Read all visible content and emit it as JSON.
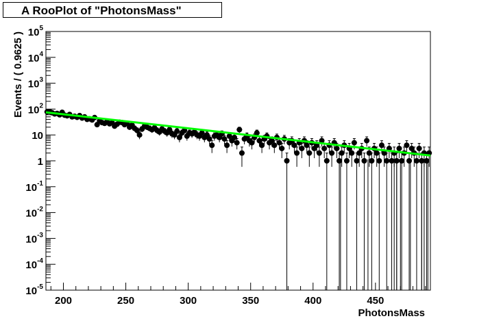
{
  "chart_data": {
    "type": "scatter",
    "title": "A RooPlot of \"PhotonsMass\"",
    "xlabel": "PhotonsMass",
    "ylabel": "Events / ( 0.9625 )",
    "xlim": [
      186,
      494
    ],
    "ylim": [
      1e-05,
      100000
    ],
    "yscale": "log",
    "x_ticks": [
      200,
      250,
      300,
      350,
      400,
      450
    ],
    "x_tick_labels": [
      "200",
      "250",
      "300",
      "350",
      "400",
      "450"
    ],
    "y_ticks": [
      {
        "value": 1e-05,
        "base": "10",
        "exp": "-5"
      },
      {
        "value": 0.0001,
        "base": "10",
        "exp": "-4"
      },
      {
        "value": 0.001,
        "base": "10",
        "exp": "-3"
      },
      {
        "value": 0.01,
        "base": "10",
        "exp": "-2"
      },
      {
        "value": 0.1,
        "base": "10",
        "exp": "-1"
      },
      {
        "value": 1,
        "base": "1",
        "exp": ""
      },
      {
        "value": 10,
        "base": "10",
        "exp": ""
      },
      {
        "value": 100,
        "base": "10",
        "exp": "2"
      },
      {
        "value": 1000,
        "base": "10",
        "exp": "3"
      },
      {
        "value": 10000,
        "base": "10",
        "exp": "4"
      },
      {
        "value": 100000,
        "base": "10",
        "exp": "5"
      }
    ],
    "grid": false,
    "series": [
      {
        "kind": "points",
        "color": "#000000",
        "points": [
          [
            187,
            78
          ],
          [
            189,
            80
          ],
          [
            191,
            72
          ],
          [
            193,
            65
          ],
          [
            195,
            68
          ],
          [
            197,
            60
          ],
          [
            199,
            75
          ],
          [
            201,
            58
          ],
          [
            203,
            55
          ],
          [
            205,
            62
          ],
          [
            207,
            50
          ],
          [
            209,
            53
          ],
          [
            211,
            48
          ],
          [
            213,
            56
          ],
          [
            215,
            45
          ],
          [
            217,
            50
          ],
          [
            219,
            40
          ],
          [
            221,
            42
          ],
          [
            223,
            38
          ],
          [
            225,
            47
          ],
          [
            227,
            25
          ],
          [
            229,
            35
          ],
          [
            231,
            30
          ],
          [
            233,
            28
          ],
          [
            235,
            33
          ],
          [
            237,
            27
          ],
          [
            239,
            30
          ],
          [
            241,
            22
          ],
          [
            243,
            26
          ],
          [
            245,
            31
          ],
          [
            247,
            30
          ],
          [
            249,
            25
          ],
          [
            251,
            28
          ],
          [
            253,
            20
          ],
          [
            255,
            24
          ],
          [
            257,
            18
          ],
          [
            259,
            15
          ],
          [
            261,
            10
          ],
          [
            263,
            17
          ],
          [
            265,
            22
          ],
          [
            267,
            20
          ],
          [
            269,
            18
          ],
          [
            271,
            16
          ],
          [
            273,
            19
          ],
          [
            275,
            15
          ],
          [
            277,
            13
          ],
          [
            279,
            17
          ],
          [
            281,
            14
          ],
          [
            283,
            12
          ],
          [
            285,
            16
          ],
          [
            287,
            11
          ],
          [
            289,
            10
          ],
          [
            291,
            14
          ],
          [
            293,
            8
          ],
          [
            295,
            12
          ],
          [
            297,
            15
          ],
          [
            299,
            9
          ],
          [
            301,
            12
          ],
          [
            303,
            11
          ],
          [
            305,
            13
          ],
          [
            307,
            10
          ],
          [
            309,
            9
          ],
          [
            311,
            12
          ],
          [
            313,
            8
          ],
          [
            315,
            10
          ],
          [
            317,
            7
          ],
          [
            319,
            4
          ],
          [
            321,
            9
          ],
          [
            323,
            10
          ],
          [
            325,
            8
          ],
          [
            327,
            11
          ],
          [
            329,
            7
          ],
          [
            331,
            4
          ],
          [
            333,
            9
          ],
          [
            335,
            6
          ],
          [
            337,
            8
          ],
          [
            339,
            5
          ],
          [
            341,
            16
          ],
          [
            343,
            2
          ],
          [
            345,
            7
          ],
          [
            347,
            9
          ],
          [
            349,
            6
          ],
          [
            351,
            5
          ],
          [
            353,
            8
          ],
          [
            355,
            12
          ],
          [
            357,
            6
          ],
          [
            359,
            4
          ],
          [
            361,
            7
          ],
          [
            363,
            9
          ],
          [
            365,
            5
          ],
          [
            367,
            6
          ],
          [
            369,
            4
          ],
          [
            371,
            8
          ],
          [
            373,
            5
          ],
          [
            375,
            3
          ],
          [
            377,
            7
          ],
          [
            379,
            1
          ],
          [
            381,
            5
          ],
          [
            383,
            6
          ],
          [
            385,
            4
          ],
          [
            387,
            2
          ],
          [
            389,
            5
          ],
          [
            391,
            3
          ],
          [
            393,
            6
          ],
          [
            395,
            4
          ],
          [
            397,
            2
          ],
          [
            399,
            5
          ],
          [
            401,
            3
          ],
          [
            403,
            4
          ],
          [
            405,
            2
          ],
          [
            407,
            6
          ],
          [
            409,
            3
          ],
          [
            411,
            1
          ],
          [
            413,
            4
          ],
          [
            415,
            2
          ],
          [
            417,
            5
          ],
          [
            419,
            3
          ],
          [
            421,
            1
          ],
          [
            423,
            2
          ],
          [
            425,
            4
          ],
          [
            427,
            1
          ],
          [
            429,
            3
          ],
          [
            431,
            2
          ],
          [
            433,
            5
          ],
          [
            435,
            1
          ],
          [
            437,
            2
          ],
          [
            439,
            3
          ],
          [
            441,
            1
          ],
          [
            443,
            6
          ],
          [
            445,
            2
          ],
          [
            447,
            1
          ],
          [
            449,
            3
          ],
          [
            451,
            2
          ],
          [
            453,
            1
          ],
          [
            455,
            4
          ],
          [
            457,
            2
          ],
          [
            459,
            1
          ],
          [
            461,
            3
          ],
          [
            463,
            1
          ],
          [
            465,
            2
          ],
          [
            467,
            1
          ],
          [
            469,
            3
          ],
          [
            471,
            1
          ],
          [
            473,
            2
          ],
          [
            475,
            4
          ],
          [
            477,
            1
          ],
          [
            479,
            3
          ],
          [
            481,
            2
          ],
          [
            483,
            1
          ],
          [
            485,
            3
          ],
          [
            487,
            1
          ],
          [
            489,
            2
          ],
          [
            491,
            1
          ],
          [
            493,
            2
          ]
        ],
        "zero_bins": [
          422,
          444,
          465,
          467,
          470,
          478,
          487,
          489,
          492
        ]
      },
      {
        "kind": "curve",
        "color": "#00ff00",
        "x": [
          186,
          494
        ],
        "y": [
          75,
          1.6
        ]
      }
    ]
  }
}
